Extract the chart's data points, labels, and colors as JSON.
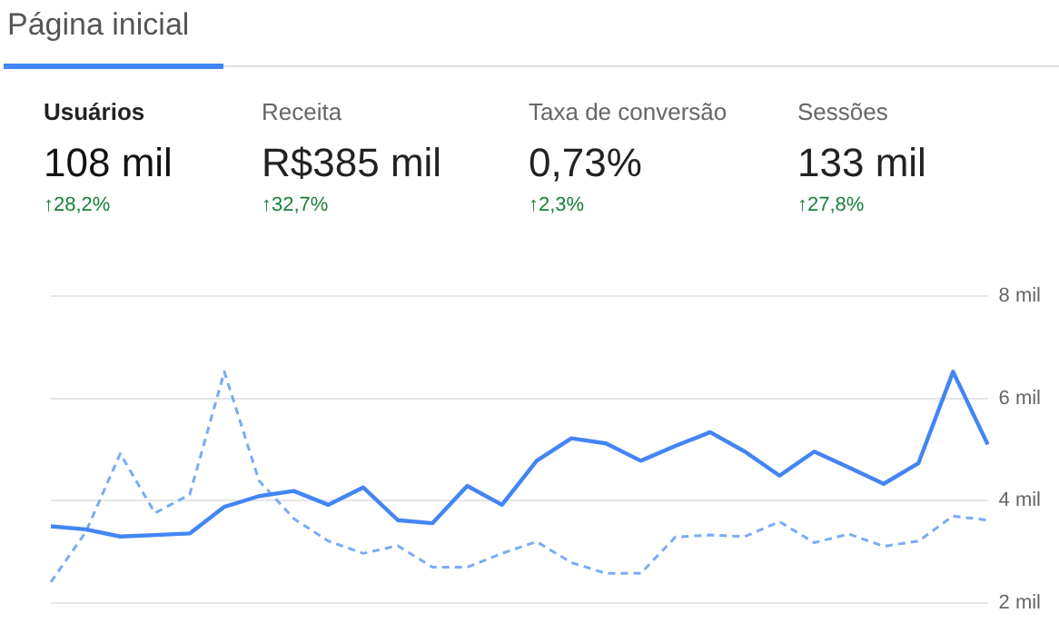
{
  "chart_data": [
    {
      "type": "other",
      "title": "Página inicial",
      "annotations": [
        "Usuários",
        "108 mil",
        "↑28,2%",
        "Receita",
        "R$385 mil",
        "↑32,7%",
        "Taxa de conversão",
        "0,73%",
        "↑2,3%",
        "Sessões",
        "133 mil",
        "↑27,8%"
      ]
    },
    {
      "type": "line",
      "categories": [
        null,
        null,
        null,
        null,
        null,
        null,
        null,
        null,
        null,
        null,
        null,
        null,
        null,
        null,
        null,
        null,
        null,
        null,
        null,
        null,
        null,
        null,
        null,
        null,
        null,
        null,
        null,
        null
      ],
      "series": [
        {
          "color": "#4285f4",
          "line_style": "solid",
          "values": [
            3.5,
            3.44,
            3.3,
            3.33,
            3.36,
            3.88,
            4.09,
            4.19,
            3.92,
            4.26,
            3.62,
            3.56,
            4.29,
            3.92,
            4.78,
            5.22,
            5.12,
            4.78,
            5.07,
            5.34,
            4.96,
            4.49,
            4.96,
            4.65,
            4.33,
            4.73,
            6.52,
            5.1
          ]
        },
        {
          "color": "#7baaf7",
          "line_style": "dashed",
          "values": [
            2.41,
            3.38,
            4.92,
            3.76,
            4.12,
            6.52,
            4.39,
            3.65,
            3.21,
            2.97,
            3.12,
            2.7,
            2.7,
            2.97,
            3.2,
            2.79,
            2.58,
            2.58,
            3.29,
            3.33,
            3.3,
            3.59,
            3.18,
            3.35,
            3.11,
            3.21,
            3.7,
            3.62
          ]
        }
      ],
      "ylim": [
        2,
        8
      ],
      "yticks": [
        {
          "value": 2,
          "label": "2 mil"
        },
        {
          "value": 4,
          "label": "4 mil"
        },
        {
          "value": 6,
          "label": "6 mil"
        },
        {
          "value": 8,
          "label": "8 mil"
        }
      ],
      "grid": "y",
      "tick_labels": "y",
      "marker": "none",
      "legend": false
    }
  ]
}
